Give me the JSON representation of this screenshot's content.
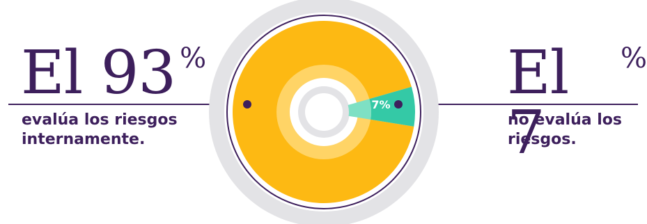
{
  "chart_data": {
    "type": "pie",
    "categories": [
      "evalúa los riesgos internamente.",
      "no evalúa los riesgos."
    ],
    "values": [
      93,
      7
    ],
    "slice_label": "7%",
    "colors": [
      "#fdb913",
      "#34c9a6"
    ]
  },
  "left_callout": {
    "prefix": "El",
    "value": "93",
    "unit": "%",
    "description": "evalúa los riesgos internamente."
  },
  "right_callout": {
    "prefix": "El",
    "value": "7",
    "unit": "%",
    "description": "no evalúa los riesgos."
  },
  "colors": {
    "text": "#3d1f5c",
    "outer_ring": "#e3e3e6",
    "donut_main": "#fdb913",
    "donut_minor": "#34c9a6",
    "inner_ring": "#ffd466",
    "line": "#3d1f5c"
  }
}
